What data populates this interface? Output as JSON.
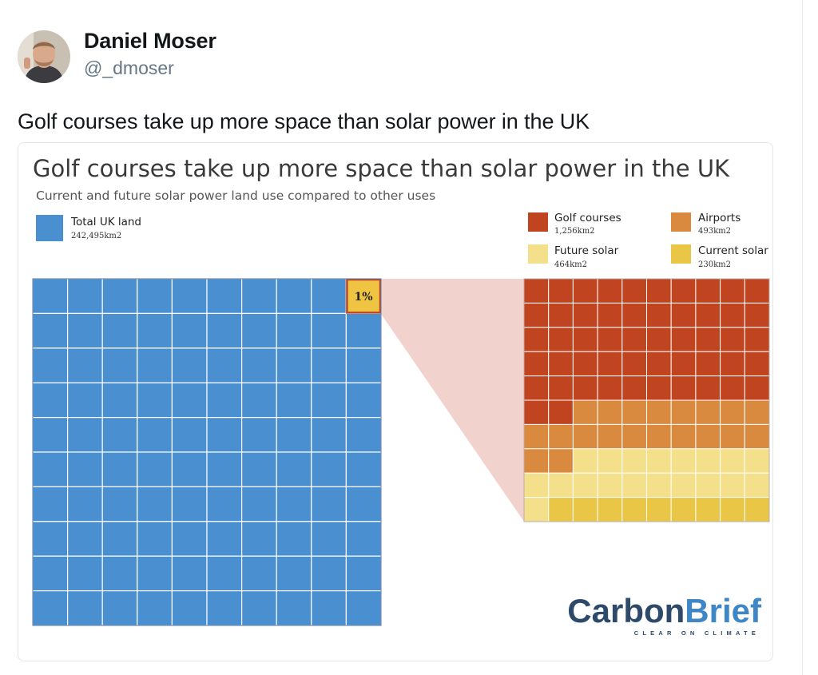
{
  "tweet": {
    "author_name": "Daniel Moser",
    "author_handle": "@_dmoser",
    "text": "Golf courses take up more space than solar power in the UK",
    "avatar_icon": "person-photo-avatar"
  },
  "chart_data": {
    "type": "waffle",
    "title": "Golf courses take up more space than solar power in the UK",
    "subtitle": "Current and future solar power land use compared to other uses",
    "unit": "km2",
    "total": {
      "name": "Total UK land",
      "value_label": "242,495km2",
      "value": 242495,
      "color": "#4a8fd0",
      "highlight_label": "1%",
      "highlight_color": "#f0c443",
      "highlight_border": "#c0441f"
    },
    "breakdown": [
      {
        "name": "Golf courses",
        "value_label": "1,256km2",
        "value": 1256,
        "color": "#c0441f"
      },
      {
        "name": "Airports",
        "value_label": "493km2",
        "value": 493,
        "color": "#d98a3f"
      },
      {
        "name": "Future solar",
        "value_label": "464km2",
        "value": 464,
        "color": "#f4df8a"
      },
      {
        "name": "Current solar",
        "value_label": "230km2",
        "value": 230,
        "color": "#e9c645"
      }
    ],
    "zoom_color": "#f2d2cc",
    "grid": true,
    "legend_position": "top"
  },
  "brand": {
    "name_part1": "Carbon",
    "name_part2": "Brief",
    "tagline": "CLEAR ON CLIMATE",
    "color1": "#2d4a6b",
    "color2": "#3f86c6"
  }
}
